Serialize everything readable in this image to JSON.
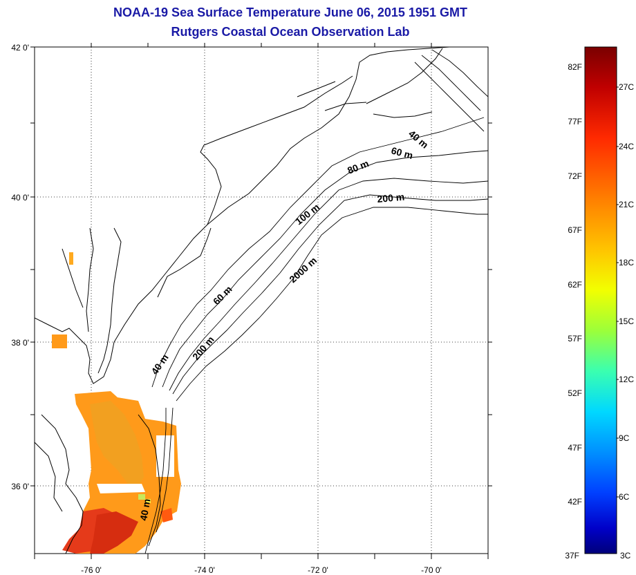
{
  "title_line1": "NOAA-19 Sea Surface Temperature June 06, 2015 1951 GMT",
  "title_line2": "Rutgers Coastal Ocean Observation Lab",
  "map": {
    "lat_labels": [
      "42 0'",
      "40 0'",
      "38 0'",
      "36 0'"
    ],
    "lon_labels": [
      "-76 0'",
      "-74 0'",
      "-72 0'",
      "-70 0'"
    ],
    "depth_labels": [
      "40 m",
      "60 m",
      "80 m",
      "100 m",
      "200 m",
      "2000 m",
      "60 m",
      "40 m",
      "200 m",
      "40 m"
    ]
  },
  "colorbar": {
    "f_labels": [
      "82F",
      "77F",
      "72F",
      "67F",
      "62F",
      "57F",
      "52F",
      "47F",
      "42F",
      "37F"
    ],
    "c_labels": [
      "27C",
      "24C",
      "21C",
      "18C",
      "15C",
      "12C",
      "9C",
      "6C",
      "3C"
    ],
    "colors": [
      "#7a0000",
      "#c00000",
      "#ff2a00",
      "#ff7f00",
      "#ffc400",
      "#f2ff00",
      "#9cff3a",
      "#3affb0",
      "#00d8ff",
      "#0090ff",
      "#0040ff",
      "#0000c8",
      "#00007a"
    ]
  }
}
